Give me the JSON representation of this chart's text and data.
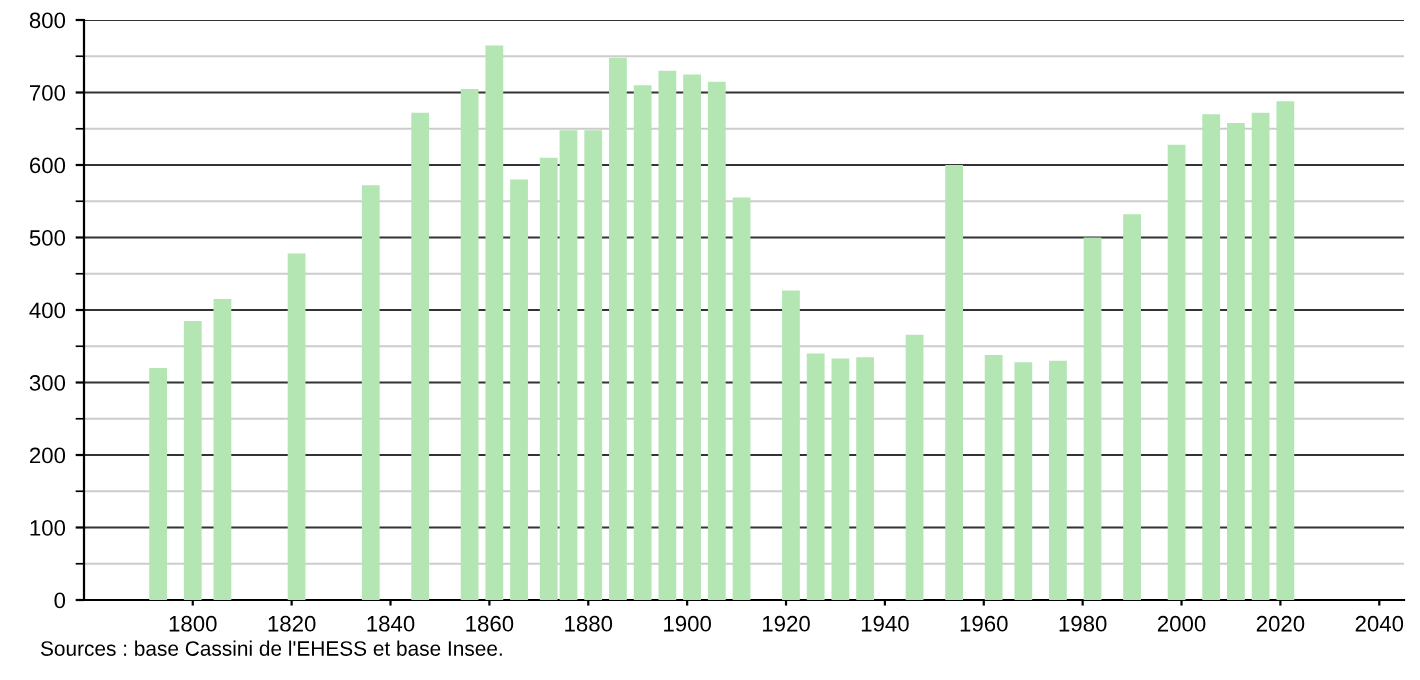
{
  "chart_data": {
    "type": "bar",
    "x": [
      1793,
      1800,
      1806,
      1821,
      1836,
      1846,
      1856,
      1861,
      1866,
      1872,
      1876,
      1881,
      1886,
      1891,
      1896,
      1901,
      1906,
      1911,
      1921,
      1926,
      1931,
      1936,
      1946,
      1954,
      1962,
      1968,
      1975,
      1982,
      1990,
      1999,
      2006,
      2011,
      2016,
      2021
    ],
    "values": [
      320,
      385,
      415,
      478,
      572,
      672,
      705,
      765,
      580,
      610,
      648,
      648,
      748,
      710,
      730,
      725,
      715,
      555,
      427,
      340,
      333,
      335,
      366,
      600,
      338,
      328,
      330,
      500,
      532,
      628,
      670,
      658,
      672,
      688
    ],
    "color": "#b3e6b3",
    "xlim": [
      1778,
      2045
    ],
    "xticks": [
      1800,
      1820,
      1840,
      1860,
      1880,
      1900,
      1920,
      1940,
      1960,
      1980,
      2000,
      2020,
      2040
    ],
    "ylim": [
      0,
      800
    ],
    "yticks": [
      0,
      100,
      200,
      300,
      400,
      500,
      600,
      700,
      800
    ],
    "grid": "y",
    "annotations": [
      "Sources : base Cassini de l'EHESS et base Insee."
    ]
  }
}
